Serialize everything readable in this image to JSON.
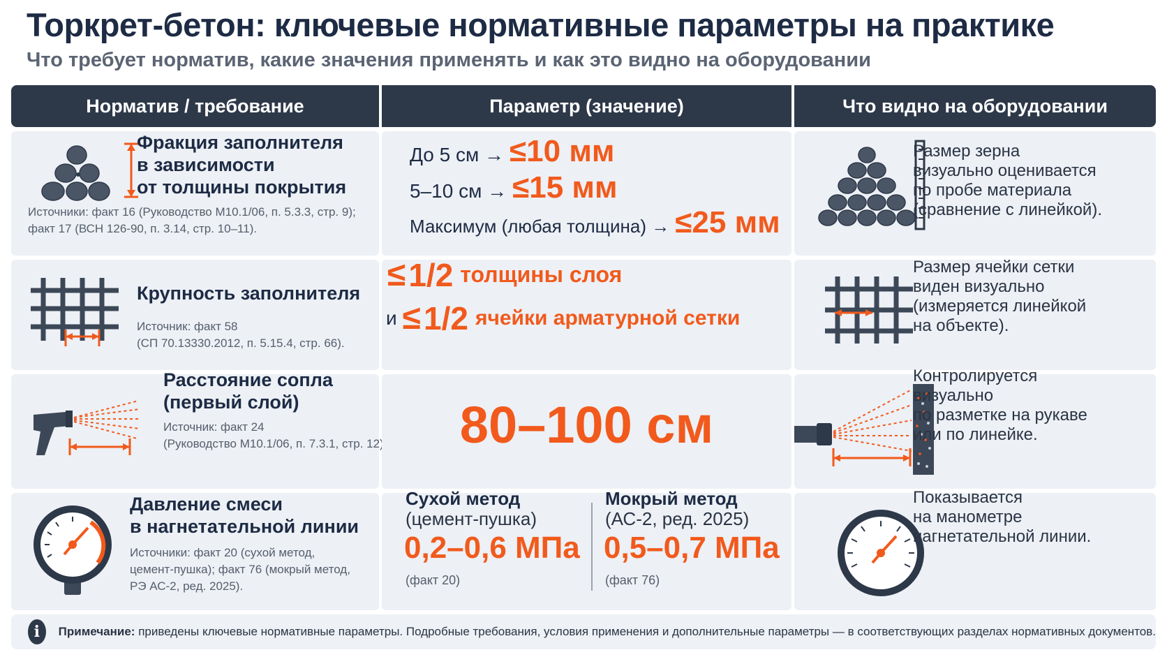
{
  "title": "Торкрет-бетон: ключевые нормативные параметры на практике",
  "subtitle": "Что требует норматив, какие значения применять и как это видно на оборудовании",
  "headers": [
    "Норматив / требование",
    "Параметр (значение)",
    "Что видно на оборудовании"
  ],
  "rows": {
    "fraction": {
      "label_lines": [
        "Фракция заполнителя",
        "в зависимости",
        "от толщины покрытия"
      ],
      "source_lines": [
        "Источники: факт 16 (Руководство М10.1/06, п. 5.3.3, стр. 9);",
        "факт 17 (ВСН 126-90, п. 3.14, стр. 10–11)."
      ],
      "values": [
        {
          "condition": "До 5 см →",
          "value": "≤10 мм"
        },
        {
          "condition": "5–10 см →",
          "value": "≤15 мм"
        },
        {
          "condition": "Максимум (любая толщина) →",
          "value": "≤25 мм"
        }
      ],
      "equipment_lines": [
        "Размер зерна",
        "визуально оценивается",
        "по пробе материала",
        "(сравнение с линейкой)."
      ],
      "icon": "aggregate-pile-icon",
      "equipment_icon": "aggregate-ruler-icon"
    },
    "size": {
      "label": "Крупность заполнителя",
      "source_lines": [
        "Источник: факт 58",
        "(СП 70.13330.2012, п. 5.15.4, стр. 66)."
      ],
      "value1_sign": "≤",
      "value1_fraction": "1/2",
      "value1_text": "толщины слоя",
      "value2_prefix": "и",
      "value2_sign": "≤",
      "value2_fraction": "1/2",
      "value2_text": "ячейки арматурной сетки",
      "equipment_lines": [
        "Размер ячейки сетки",
        "виден визуально",
        "(измеряется линейкой",
        "на объекте)."
      ],
      "icon": "rebar-mesh-icon",
      "equipment_icon": "rebar-mesh-measure-icon"
    },
    "nozzle": {
      "label_lines": [
        "Расстояние сопла",
        "(первый слой)"
      ],
      "source_lines": [
        "Источник: факт 24",
        "(Руководство М10.1/06, п. 7.3.1, стр. 12)."
      ],
      "value": "80–100 см",
      "equipment_lines": [
        "Контролируется",
        "визуально",
        "по разметке на рукаве",
        "или по линейке."
      ],
      "icon": "spray-gun-icon",
      "equipment_icon": "nozzle-wall-icon"
    },
    "pressure": {
      "label_lines": [
        "Давление смеси",
        "в нагнетательной линии"
      ],
      "source_lines": [
        "Источники: факт 20 (сухой метод,",
        "цемент-пушка); факт 76 (мокрый метод,",
        "РЭ АС-2, ред. 2025)."
      ],
      "dry": {
        "method_lines": [
          "Сухой метод",
          "(цемент-пушка)"
        ],
        "value": "0,2–0,6 МПа",
        "ref": "(факт 20)"
      },
      "wet": {
        "method_lines": [
          "Мокрый метод",
          "(АС-2, ред. 2025)"
        ],
        "value": "0,5–0,7 МПа",
        "ref": "(факт 76)"
      },
      "equipment_lines": [
        "Показывается",
        "на манометре",
        "нагнетательной линии."
      ],
      "icon": "pressure-gauge-icon",
      "equipment_icon": "manometer-icon"
    }
  },
  "note": {
    "label": "Примечание:",
    "text": " приведены ключевые нормативные параметры. Подробные требования, условия применения и дополнительные параметры — в соответствующих разделах нормативных документов."
  },
  "colors": {
    "accent": "#f15a1c",
    "header": "#2d3848",
    "cell": "#edf0f5",
    "text": "#1d2b44"
  }
}
